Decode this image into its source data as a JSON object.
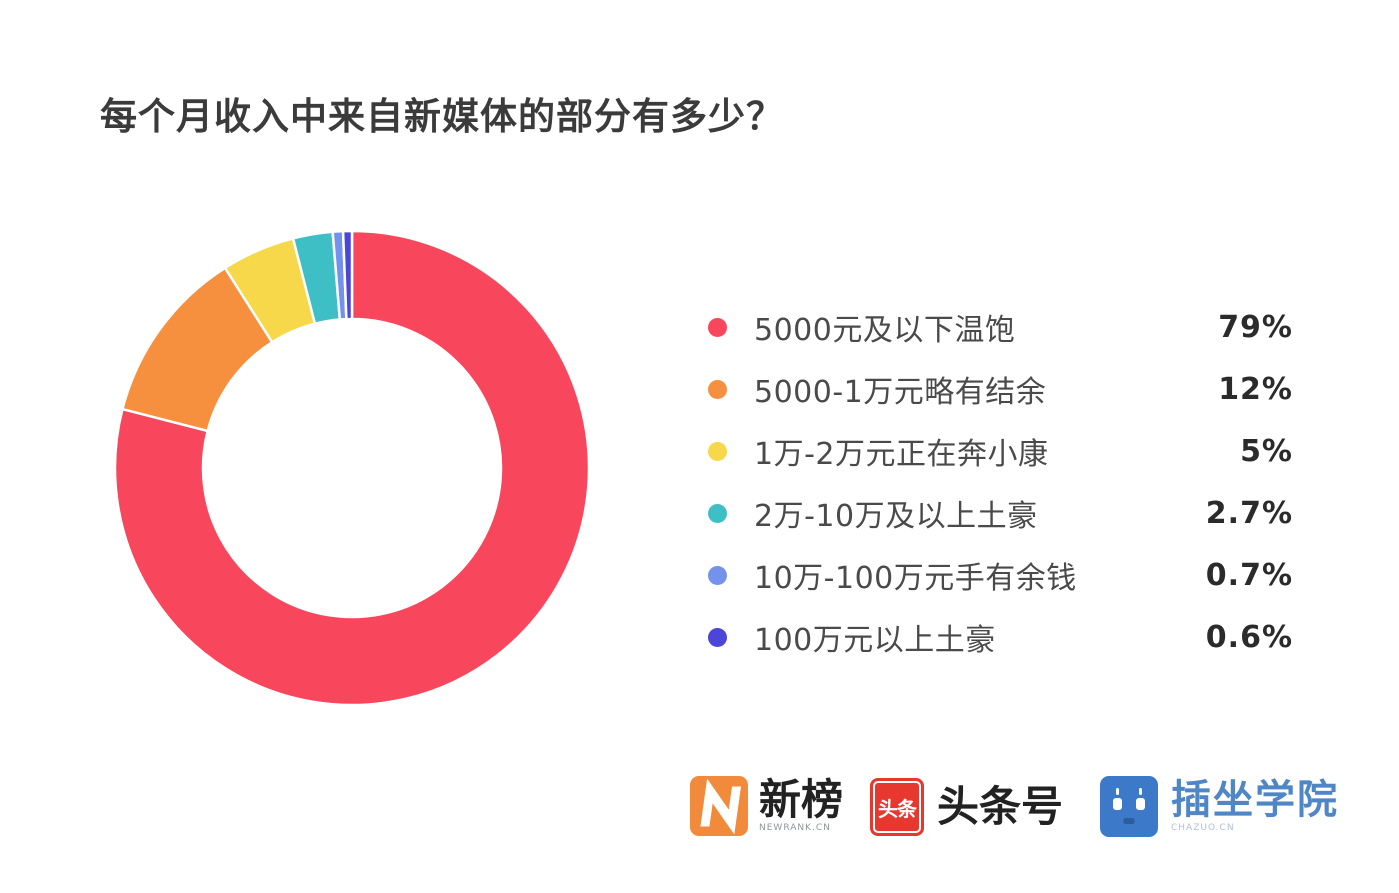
{
  "title": "每个月收入中来自新媒体的部分有多少？",
  "chart_data": {
    "type": "pie",
    "subtype": "donut",
    "title": "每个月收入中来自新媒体的部分有多少？",
    "start_angle_deg": 0,
    "direction": "clockwise",
    "legend_position": "right",
    "inner_radius_ratio": 0.63,
    "segments": [
      {
        "label": "5000元及以下温饱",
        "value_pct": 79,
        "display": "79%",
        "color": "#F8475C"
      },
      {
        "label": "5000-1万元略有结余",
        "value_pct": 12,
        "display": "12%",
        "color": "#F6903E"
      },
      {
        "label": "1万-2万元正在奔小康",
        "value_pct": 5,
        "display": "5%",
        "color": "#F6D84A"
      },
      {
        "label": "2万-10万及以上土豪",
        "value_pct": 2.7,
        "display": "2.7%",
        "color": "#3EBFC6"
      },
      {
        "label": "10万-100万元手有余钱",
        "value_pct": 0.7,
        "display": "0.7%",
        "color": "#7492EC"
      },
      {
        "label": "100万元以上土豪",
        "value_pct": 0.6,
        "display": "0.6%",
        "color": "#4B45D9"
      }
    ]
  },
  "footer_logos": {
    "newrank": {
      "name": "新榜",
      "subtext": "NEWRANK.CN",
      "icon_color": "#F28A3C"
    },
    "toutiao": {
      "name": "头条号",
      "icon_text": "头条",
      "icon_color": "#E6382E"
    },
    "chazuo": {
      "name": "插坐学院",
      "subtext": "CHAZUO.CN",
      "icon_color": "#3D79C9",
      "name_color": "#4E86C6"
    }
  }
}
